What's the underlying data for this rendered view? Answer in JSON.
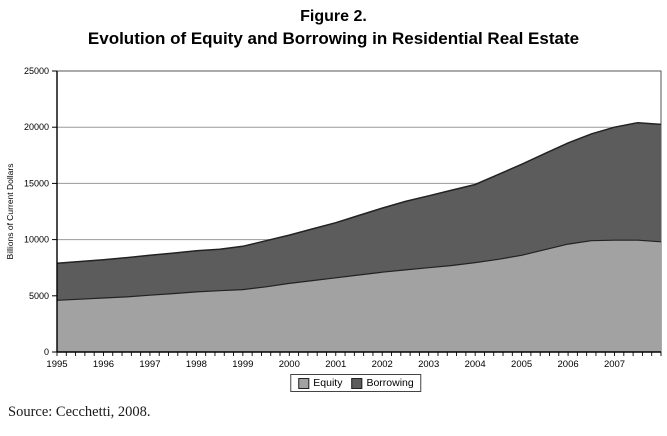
{
  "figure": {
    "title_line1": "Figure 2.",
    "title_line2": "Evolution of Equity and Borrowing in Residential Real Estate",
    "source": "Source: Cecchetti, 2008."
  },
  "chart_data": {
    "type": "area",
    "stacked": true,
    "title": "Evolution of Equity and Borrowing in Residential Real Estate",
    "xlabel": "",
    "ylabel": "Billions of Current Dollars",
    "xlim": [
      1995,
      2008
    ],
    "ylim": [
      0,
      25000
    ],
    "grid": true,
    "legend_position": "bottom",
    "legend": [
      "Equity",
      "Borrowing"
    ],
    "yticks": [
      0,
      5000,
      10000,
      15000,
      20000,
      25000
    ],
    "xticks": [
      1995,
      1996,
      1997,
      1998,
      1999,
      2000,
      2001,
      2002,
      2003,
      2004,
      2005,
      2006,
      2007
    ],
    "minor_tick_interval": 0.2,
    "x": [
      1995,
      1995.5,
      1996,
      1996.5,
      1997,
      1997.5,
      1998,
      1998.5,
      1999,
      1999.5,
      2000,
      2000.5,
      2001,
      2001.5,
      2002,
      2002.5,
      2003,
      2003.5,
      2004,
      2004.5,
      2005,
      2005.5,
      2006,
      2006.5,
      2007,
      2007.5,
      2008
    ],
    "series": [
      {
        "name": "Equity",
        "color": "#a2a2a2",
        "values": [
          4600,
          4700,
          4800,
          4900,
          5050,
          5200,
          5350,
          5450,
          5550,
          5800,
          6100,
          6350,
          6600,
          6850,
          7100,
          7300,
          7500,
          7700,
          7950,
          8250,
          8600,
          9100,
          9600,
          9900,
          9950,
          9950,
          9800
        ]
      },
      {
        "name": "Borrowing",
        "color": "#5c5c5c",
        "values": [
          3300,
          3350,
          3400,
          3500,
          3550,
          3600,
          3650,
          3700,
          3850,
          4100,
          4300,
          4600,
          4900,
          5300,
          5700,
          6100,
          6400,
          6700,
          6950,
          7550,
          8100,
          8550,
          9000,
          9500,
          10050,
          10450,
          10450
        ]
      }
    ]
  },
  "colors": {
    "equity": "#a2a2a2",
    "borrowing": "#5c5c5c",
    "gridline": "#9a9a9a",
    "axis": "#000000",
    "plot_border": "#555555"
  }
}
